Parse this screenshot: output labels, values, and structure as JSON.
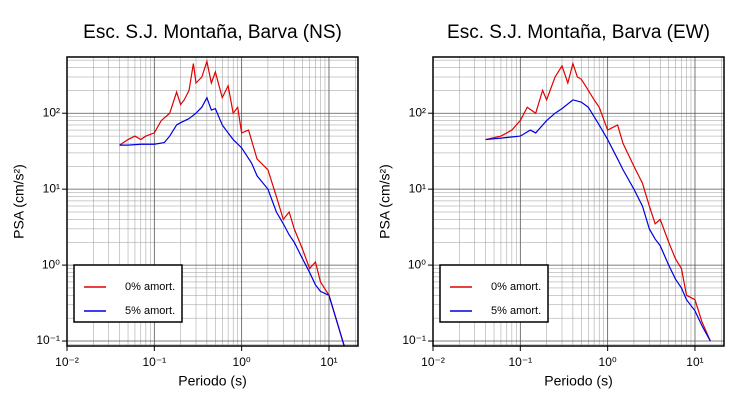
{
  "chart_data": [
    {
      "type": "line",
      "title": "Esc. S.J. Montaña, Barva (NS)",
      "x_label": "Periodo (s)",
      "y_label": "PSA (cm/s²)",
      "log_x": true,
      "log_y": true,
      "grid": true,
      "legend": "lower left",
      "xlim": [
        0.01,
        21.5
      ],
      "ylim": [
        0.086,
        550
      ],
      "xticks": [
        {
          "value": 0.01,
          "label": "10⁻²"
        },
        {
          "value": 0.1,
          "label": "10⁻¹"
        },
        {
          "value": 1,
          "label": "10⁰"
        },
        {
          "value": 10,
          "label": "10¹"
        }
      ],
      "yticks": [
        {
          "value": 0.1,
          "label": "10⁻¹"
        },
        {
          "value": 1,
          "label": "10⁰"
        },
        {
          "value": 10,
          "label": "10¹"
        },
        {
          "value": 100,
          "label": "10²"
        }
      ],
      "series": [
        {
          "name": "0% amort.",
          "color": "#e00000",
          "x": [
            0.04,
            0.05,
            0.06,
            0.07,
            0.08,
            0.1,
            0.12,
            0.15,
            0.18,
            0.2,
            0.22,
            0.25,
            0.28,
            0.3,
            0.35,
            0.4,
            0.45,
            0.5,
            0.6,
            0.7,
            0.8,
            0.9,
            1.0,
            1.2,
            1.5,
            2,
            2.5,
            3,
            3.5,
            4,
            5,
            6,
            7,
            8,
            10,
            12,
            15
          ],
          "values": [
            38,
            45,
            50,
            45,
            50,
            55,
            80,
            100,
            190,
            130,
            150,
            200,
            450,
            250,
            300,
            480,
            250,
            350,
            160,
            230,
            100,
            120,
            55,
            60,
            25,
            18,
            8,
            4,
            5,
            3,
            1.6,
            0.9,
            1.1,
            0.6,
            0.4,
            0.2,
            0.085
          ]
        },
        {
          "name": "5% amort.",
          "color": "#0000e0",
          "x": [
            0.04,
            0.05,
            0.07,
            0.1,
            0.13,
            0.15,
            0.18,
            0.2,
            0.25,
            0.3,
            0.35,
            0.4,
            0.45,
            0.5,
            0.6,
            0.7,
            0.8,
            1.0,
            1.3,
            1.5,
            2.0,
            2.5,
            3,
            3.5,
            4,
            5,
            6,
            7,
            8,
            10,
            12,
            15
          ],
          "values": [
            38,
            38,
            39,
            39,
            41,
            50,
            70,
            75,
            85,
            100,
            120,
            160,
            110,
            115,
            70,
            55,
            45,
            35,
            22,
            15,
            10,
            5,
            3.5,
            2.5,
            2,
            1.2,
            0.8,
            0.55,
            0.45,
            0.4,
            0.2,
            0.085
          ]
        }
      ]
    },
    {
      "type": "line",
      "title": "Esc. S.J. Montaña, Barva (EW)",
      "x_label": "Periodo (s)",
      "y_label": "PSA (cm/s²)",
      "log_x": true,
      "log_y": true,
      "grid": true,
      "legend": "lower left",
      "xlim": [
        0.01,
        21.5
      ],
      "ylim": [
        0.086,
        550
      ],
      "xticks": [
        {
          "value": 0.01,
          "label": "10⁻²"
        },
        {
          "value": 0.1,
          "label": "10⁻¹"
        },
        {
          "value": 1,
          "label": "10⁰"
        },
        {
          "value": 10,
          "label": "10¹"
        }
      ],
      "yticks": [
        {
          "value": 0.1,
          "label": "10⁻¹"
        },
        {
          "value": 1,
          "label": "10⁰"
        },
        {
          "value": 10,
          "label": "10¹"
        },
        {
          "value": 100,
          "label": "10²"
        }
      ],
      "series": [
        {
          "name": "0% amort.",
          "color": "#e00000",
          "x": [
            0.04,
            0.06,
            0.08,
            0.1,
            0.12,
            0.15,
            0.18,
            0.2,
            0.25,
            0.3,
            0.35,
            0.4,
            0.45,
            0.5,
            0.6,
            0.7,
            0.8,
            1.0,
            1.3,
            1.5,
            2,
            2.5,
            3,
            3.5,
            4,
            5,
            6,
            7,
            8,
            10,
            12,
            15
          ],
          "values": [
            45,
            50,
            60,
            80,
            120,
            100,
            200,
            150,
            300,
            420,
            250,
            450,
            300,
            280,
            200,
            150,
            120,
            60,
            70,
            40,
            20,
            12,
            6,
            3.5,
            4,
            2,
            1.2,
            0.9,
            0.4,
            0.35,
            0.18,
            0.1
          ]
        },
        {
          "name": "5% amort.",
          "color": "#0000e0",
          "x": [
            0.04,
            0.06,
            0.1,
            0.13,
            0.15,
            0.2,
            0.25,
            0.3,
            0.4,
            0.5,
            0.6,
            0.8,
            1.0,
            1.3,
            1.5,
            2,
            2.5,
            3,
            3.5,
            4,
            5,
            6,
            7,
            8,
            10,
            12,
            15
          ],
          "values": [
            45,
            47,
            50,
            60,
            55,
            80,
            100,
            115,
            150,
            140,
            120,
            70,
            45,
            25,
            18,
            10,
            6,
            3,
            2.2,
            1.8,
            1,
            0.65,
            0.5,
            0.35,
            0.25,
            0.16,
            0.1
          ]
        }
      ]
    }
  ]
}
